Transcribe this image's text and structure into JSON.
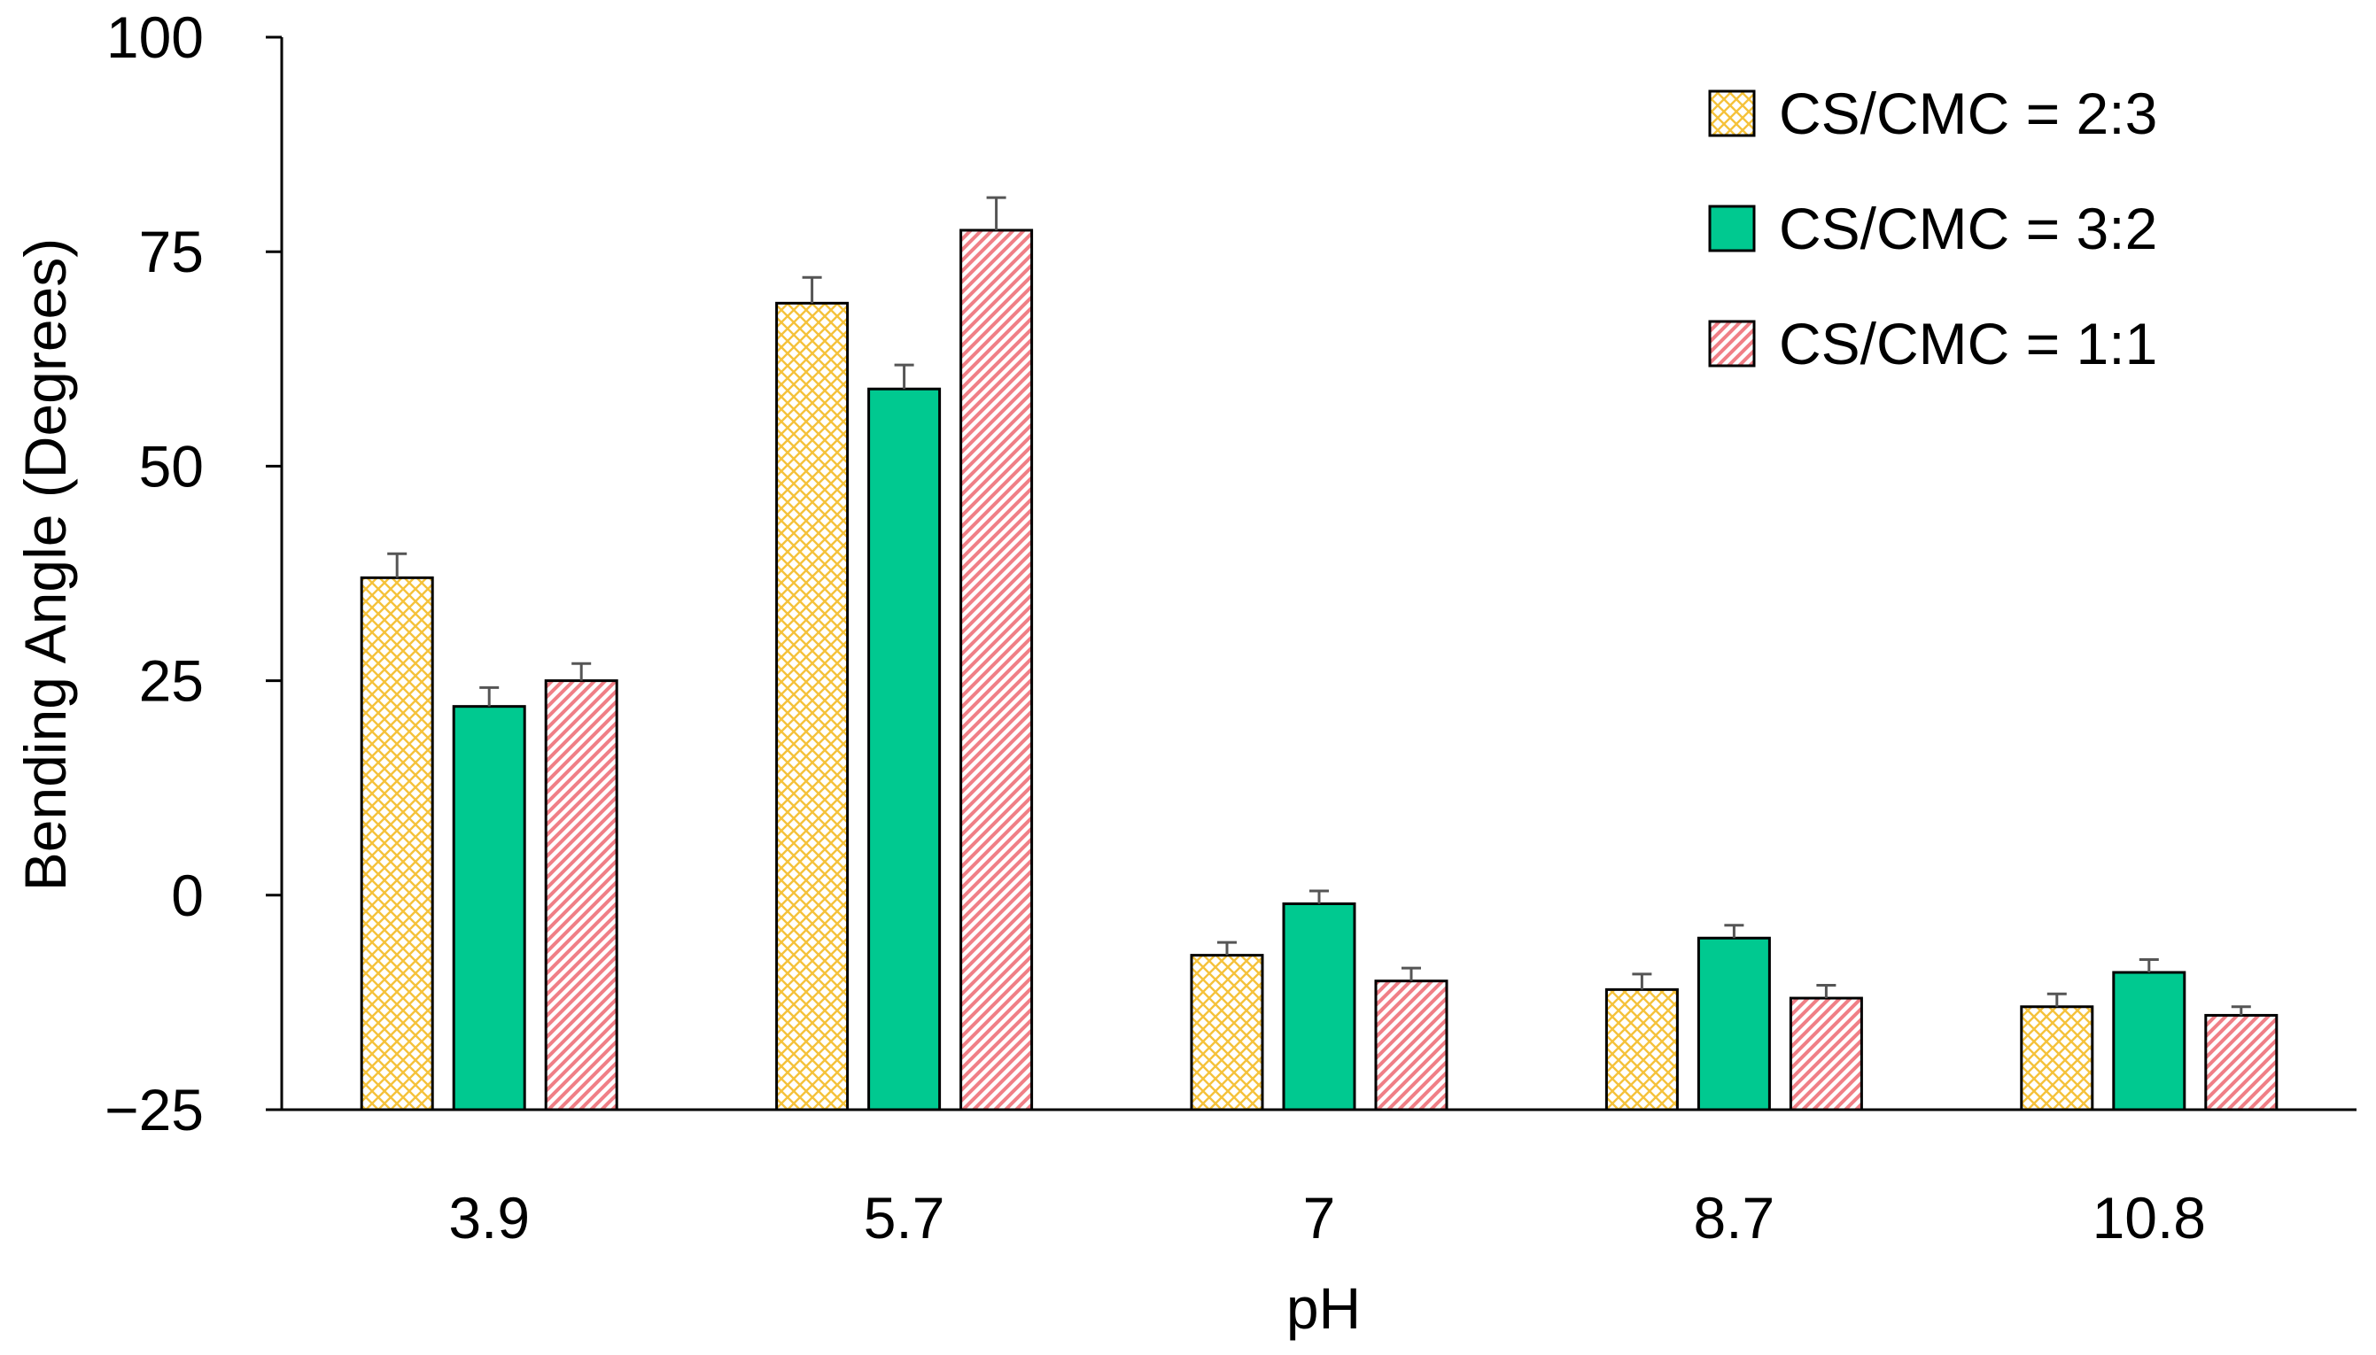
{
  "chart_data": {
    "type": "bar",
    "title": "",
    "xlabel": "pH",
    "ylabel": "Bending Angle (Degrees)",
    "ylim": [
      -25,
      100
    ],
    "yticks": [
      100,
      75,
      50,
      25,
      0,
      -25
    ],
    "ytick_labels": [
      "100",
      "75",
      "50",
      "25",
      "0",
      "−25"
    ],
    "categories": [
      "3.9",
      "5.7",
      "7",
      "8.7",
      "10.8"
    ],
    "series": [
      {
        "name": "CS/CMC = 2:3",
        "color": "#f5c23b",
        "pattern": "crosshatch",
        "values": [
          37,
          69,
          -7,
          -11,
          -13
        ],
        "errors": [
          2.8,
          3.0,
          1.5,
          1.8,
          1.5
        ]
      },
      {
        "name": "CS/CMC = 3:2",
        "color": "#00c990",
        "pattern": "solid",
        "values": [
          22,
          59,
          -1,
          -5,
          -9
        ],
        "errors": [
          2.2,
          2.8,
          1.5,
          1.5,
          1.5
        ]
      },
      {
        "name": "CS/CMC = 1:1",
        "color": "#f07f86",
        "pattern": "diagonal",
        "values": [
          25,
          77.5,
          -10,
          -12,
          -14
        ],
        "errors": [
          2.0,
          3.8,
          1.5,
          1.5,
          1.0
        ]
      }
    ],
    "legend_position": "top-right",
    "grid": false
  }
}
